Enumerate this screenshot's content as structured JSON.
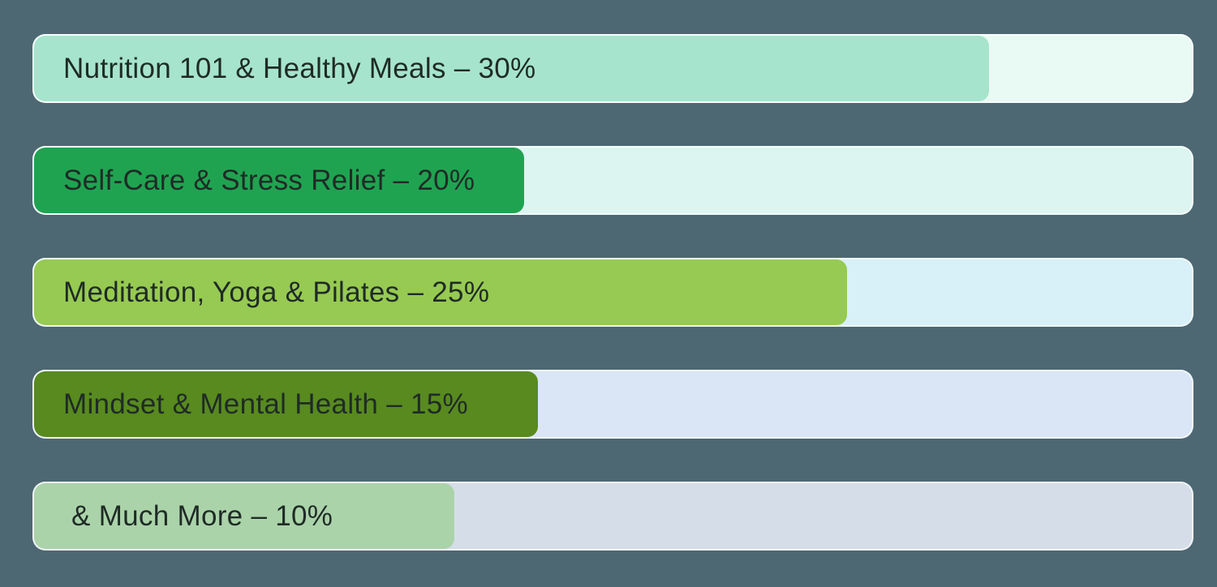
{
  "background_color": "#4d6872",
  "text_color": "#1f2b26",
  "chart_data": {
    "type": "bar",
    "orientation": "horizontal",
    "title": "",
    "xlabel": "",
    "ylabel": "",
    "unit": "%",
    "xlim": [
      0,
      100
    ],
    "grid": false,
    "legend": false,
    "categories": [
      "Nutrition 101 & Healthy Meals",
      "Self-Care & Stress Relief",
      "Meditation, Yoga & Pilates",
      "Mindset & Mental Health",
      "& Much More"
    ],
    "values": [
      30,
      20,
      25,
      15,
      10
    ],
    "bars": [
      {
        "label": "Nutrition 101 & Healthy Meals – 30%",
        "value": 30,
        "fill_percent": 82.5,
        "fill_color": "#a6e4cd",
        "track_color": "#e9f9f4"
      },
      {
        "label": "Self-Care & Stress Relief – 20%",
        "value": 20,
        "fill_percent": 42.3,
        "fill_color": "#20a351",
        "track_color": "#dcf5f1"
      },
      {
        "label": "Meditation, Yoga & Pilates – 25%",
        "value": 25,
        "fill_percent": 70.2,
        "fill_color": "#97ca52",
        "track_color": "#d8f0f7"
      },
      {
        "label": "Mindset & Mental Health – 15%",
        "value": 15,
        "fill_percent": 43.5,
        "fill_color": "#588a1f",
        "track_color": "#dae6f5"
      },
      {
        "label": " & Much More – 10%",
        "value": 10,
        "fill_percent": 36.3,
        "fill_color": "#abd3aa",
        "track_color": "#d5dde8"
      }
    ]
  }
}
